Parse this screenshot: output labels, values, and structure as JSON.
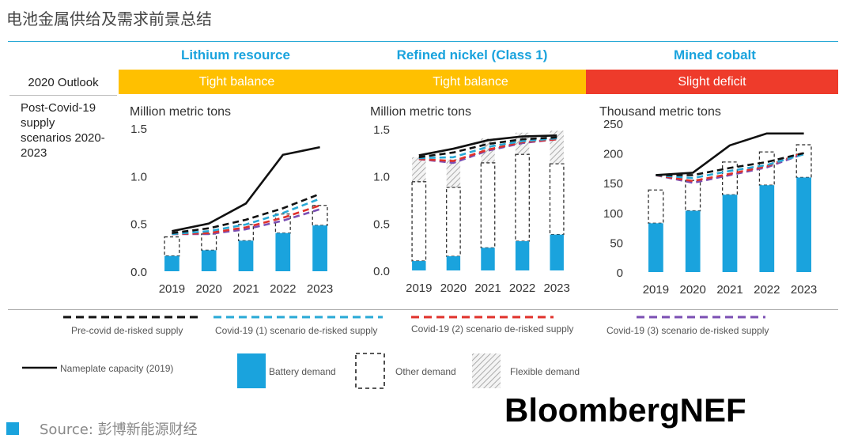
{
  "page_title": "电池金属供给及需求前景总结",
  "row_labels": {
    "outlook": "2020 Outlook",
    "scenarios": "Post-Covid-19 supply scenarios 2020-2023"
  },
  "colors": {
    "battery": "#1aa3dd",
    "tight": "#ffc000",
    "deficit": "#ee3b2b",
    "header": "#1aa3dd"
  },
  "columns": [
    {
      "header": "Lithium resource",
      "outlook": "Tight balance",
      "outlook_color": "#ffc000"
    },
    {
      "header": "Refined nickel (Class 1)",
      "outlook": "Tight balance",
      "outlook_color": "#ffc000"
    },
    {
      "header": "Mined cobalt",
      "outlook": "Slight deficit",
      "outlook_color": "#ee3b2b"
    }
  ],
  "legend": {
    "precovid": "Pre-covid de-risked supply",
    "covid1": "Covid-19 (1) scenario de-risked supply",
    "covid2": "Covid-19 (2) scenario de-risked supply",
    "covid3": "Covid-19 (3) scenario de-risked supply",
    "nameplate": "Nameplate capacity (2019)",
    "battery": "Battery demand",
    "other": "Other demand",
    "flexible": "Flexible demand"
  },
  "source": "Source: 彭博新能源财经",
  "brand": "BloombergNEF",
  "chart_data": [
    {
      "type": "bar",
      "title": "Lithium resource",
      "ylabel": "Million metric tons",
      "categories": [
        "2019",
        "2020",
        "2021",
        "2022",
        "2023"
      ],
      "ylim": [
        0,
        1.5
      ],
      "yticks": [
        "0.0",
        "0.5",
        "1.0",
        "1.5"
      ],
      "ytick_values": [
        0,
        0.5,
        1.0,
        1.5
      ],
      "battery_demand": [
        0.16,
        0.22,
        0.32,
        0.4,
        0.48
      ],
      "other_demand": [
        0.2,
        0.17,
        0.17,
        0.2,
        0.21
      ],
      "flexible_demand": [
        0,
        0,
        0,
        0,
        0
      ],
      "series": [
        {
          "name": "Nameplate capacity (2019)",
          "values": [
            0.42,
            0.5,
            0.71,
            1.22,
            1.3
          ]
        },
        {
          "name": "Pre-covid de-risked supply",
          "values": [
            0.4,
            0.45,
            0.54,
            0.66,
            0.81
          ]
        },
        {
          "name": "Covid-19 (1) scenario de-risked supply",
          "values": [
            0.39,
            0.42,
            0.49,
            0.61,
            0.76
          ]
        },
        {
          "name": "Covid-19 (2) scenario de-risked supply",
          "values": [
            0.39,
            0.4,
            0.46,
            0.56,
            0.69
          ]
        },
        {
          "name": "Covid-19 (3) scenario de-risked supply",
          "values": [
            0.39,
            0.39,
            0.44,
            0.53,
            0.65
          ]
        }
      ]
    },
    {
      "type": "bar",
      "title": "Refined nickel (Class 1)",
      "ylabel": "Million metric tons",
      "categories": [
        "2019",
        "2020",
        "2021",
        "2022",
        "2023"
      ],
      "ylim": [
        0,
        1.5
      ],
      "yticks": [
        "0.0",
        "0.5",
        "1.0",
        "1.5"
      ],
      "ytick_values": [
        0,
        0.5,
        1.0,
        1.5
      ],
      "battery_demand": [
        0.1,
        0.15,
        0.24,
        0.31,
        0.38
      ],
      "other_demand": [
        0.84,
        0.73,
        0.9,
        0.92,
        0.75
      ],
      "flexible_demand": [
        0.26,
        0.3,
        0.26,
        0.23,
        0.35
      ],
      "series": [
        {
          "name": "Nameplate capacity (2019)",
          "values": [
            1.22,
            1.29,
            1.38,
            1.42,
            1.43
          ]
        },
        {
          "name": "Pre-covid de-risked supply",
          "values": [
            1.2,
            1.25,
            1.34,
            1.39,
            1.41
          ]
        },
        {
          "name": "Covid-19 (1) scenario de-risked supply",
          "values": [
            1.19,
            1.2,
            1.31,
            1.37,
            1.4
          ]
        },
        {
          "name": "Covid-19 (2) scenario de-risked supply",
          "values": [
            1.18,
            1.16,
            1.28,
            1.36,
            1.39
          ]
        },
        {
          "name": "Covid-19 (3) scenario de-risked supply",
          "values": [
            1.18,
            1.14,
            1.27,
            1.35,
            1.39
          ]
        }
      ]
    },
    {
      "type": "bar",
      "title": "Mined cobalt",
      "ylabel": "Thousand metric tons",
      "categories": [
        "2019",
        "2020",
        "2021",
        "2022",
        "2023"
      ],
      "ylim": [
        0,
        250
      ],
      "yticks": [
        "0",
        "50",
        "100",
        "150",
        "200",
        "250"
      ],
      "ytick_values": [
        0,
        50,
        100,
        150,
        200,
        250
      ],
      "battery_demand": [
        82,
        103,
        130,
        146,
        159
      ],
      "other_demand": [
        56,
        51,
        55,
        56,
        55
      ],
      "flexible_demand": [
        0,
        0,
        0,
        0,
        0
      ],
      "series": [
        {
          "name": "Nameplate capacity (2019)",
          "values": [
            163,
            167,
            213,
            233,
            233
          ]
        },
        {
          "name": "Pre-covid de-risked supply",
          "values": [
            163,
            163,
            175,
            185,
            200
          ]
        },
        {
          "name": "Covid-19 (1) scenario de-risked supply",
          "values": [
            163,
            158,
            170,
            180,
            198
          ]
        },
        {
          "name": "Covid-19 (2) scenario de-risked supply",
          "values": [
            163,
            153,
            165,
            178,
            201
          ]
        },
        {
          "name": "Covid-19 (3) scenario de-risked supply",
          "values": [
            163,
            150,
            163,
            176,
            199
          ]
        }
      ]
    }
  ]
}
